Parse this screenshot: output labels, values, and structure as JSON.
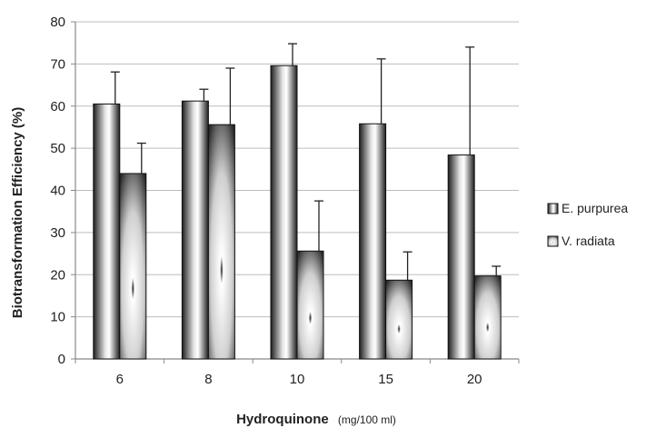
{
  "chart_data": {
    "type": "bar",
    "title": "",
    "xlabel": "Hydroquinone",
    "xlabel_unit": "(mg/100 ml)",
    "ylabel": "Biotransformation Efficiency (%)",
    "ylim": [
      0,
      80
    ],
    "yticks": [
      0,
      10,
      20,
      30,
      40,
      50,
      60,
      70,
      80
    ],
    "grid": true,
    "legend_position": "right",
    "categories": [
      "6",
      "8",
      "10",
      "15",
      "20"
    ],
    "series": [
      {
        "name": "E. purpurea",
        "values": [
          60.5,
          61.2,
          69.6,
          55.8,
          48.4
        ],
        "error": [
          7.6,
          2.8,
          5.2,
          15.4,
          25.6
        ]
      },
      {
        "name": "V. radiata",
        "values": [
          44.0,
          55.6,
          25.6,
          18.7,
          19.7
        ],
        "error": [
          7.2,
          13.4,
          11.9,
          6.7,
          2.3
        ]
      }
    ],
    "colors": {
      "series_1": "#2a2a2a",
      "series_2": "#3a3a3a",
      "grid": "#bdbdbd",
      "axis": "#888888"
    }
  }
}
